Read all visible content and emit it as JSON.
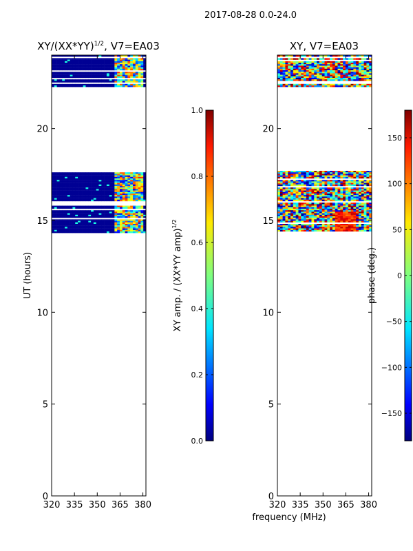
{
  "suptitle": "2017-08-28 0.0-24.0",
  "chart_data": [
    {
      "type": "heatmap",
      "id": "amp",
      "title": "XY/(XX*YY)",
      "title_sup": "1/2",
      "title_suffix": ", V7=EA03",
      "xlabel": "",
      "ylabel": "UT (hours)",
      "xlim": [
        320,
        382
      ],
      "ylim": [
        0,
        24
      ],
      "xticks": [
        320,
        335,
        350,
        365,
        380
      ],
      "yticks": [
        0,
        5,
        10,
        15,
        20
      ],
      "observed_ut_ranges": [
        [
          14.4,
          17.7
        ],
        [
          22.3,
          24.0
        ]
      ],
      "colorbar": {
        "label": "XY amp. / (XX*YY amp)",
        "label_sup": "1/2",
        "range": [
          0.0,
          1.0
        ],
        "ticks": [
          "0.0",
          "0.2",
          "0.4",
          "0.6",
          "0.8",
          "1.0"
        ],
        "colormap": "jet"
      }
    },
    {
      "type": "heatmap",
      "id": "phase",
      "title": "XY, V7=EA03",
      "xlabel": "frequency (MHz)",
      "ylabel": "",
      "xlim": [
        320,
        382
      ],
      "ylim": [
        0,
        24
      ],
      "xticks": [
        320,
        335,
        350,
        365,
        380
      ],
      "yticks": [
        0,
        5,
        10,
        15,
        20
      ],
      "observed_ut_ranges": [
        [
          14.4,
          17.7
        ],
        [
          22.3,
          24.0
        ]
      ],
      "colorbar": {
        "label": "phase (deg.)",
        "range": [
          -180,
          180
        ],
        "ticks": [
          "−150",
          "−100",
          "−50",
          "0",
          "50",
          "100",
          "150"
        ],
        "colormap": "jet"
      }
    }
  ]
}
